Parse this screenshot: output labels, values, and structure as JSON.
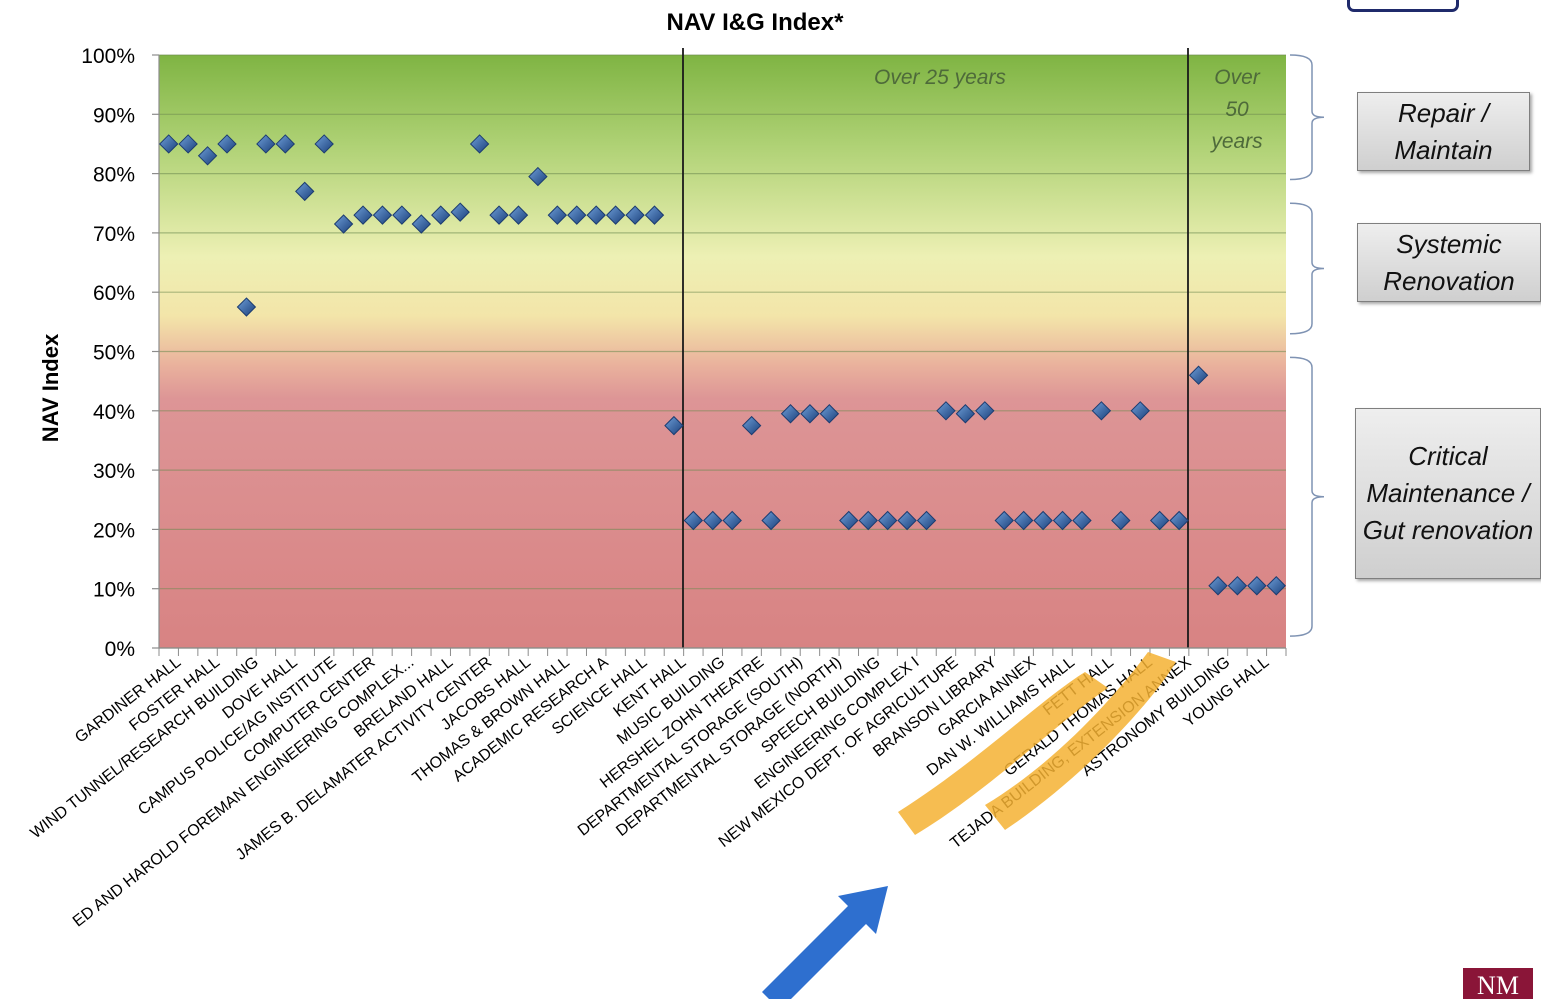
{
  "chart_data": {
    "type": "scatter",
    "title": "NAV I&G Index*",
    "xlabel": "",
    "ylabel": "NAV Index",
    "ylim": [
      0,
      100
    ],
    "yticks": [
      "0%",
      "10%",
      "20%",
      "30%",
      "40%",
      "50%",
      "60%",
      "70%",
      "80%",
      "90%",
      "100%"
    ],
    "grid": true,
    "marker_color": "#2d5c9e",
    "labeled_categories": [
      "GARDINER HALL",
      "FOSTER HALL",
      "WIND TUNNEL/RESEARCH BUILDING",
      "DOVE HALL",
      "CAMPUS POLICE/AG INSTITUTE",
      "COMPUTER CENTER",
      "ED AND HAROLD FOREMAN ENGINEERING COMPLEX...",
      "BRELAND HALL",
      "JAMES B. DELAMATER ACTIVITY CENTER",
      "JACOBS HALL",
      "THOMAS & BROWN HALL",
      "ACADEMIC RESEARCH A",
      "SCIENCE HALL",
      "KENT HALL",
      "MUSIC BUILDING",
      "HERSHEL ZOHN THEATRE",
      "DEPARTMENTAL STORAGE (SOUTH)",
      "DEPARTMENTAL STORAGE (NORTH)",
      "SPEECH BUILDING",
      "ENGINEERING COMPLEX I",
      "NEW MEXICO DEPT. OF AGRICULTURE",
      "BRANSON LIBRARY",
      "GARCIA ANNEX",
      "DAN W. WILLIAMS HALL",
      "FETT HALL",
      "GERALD THOMAS HALL",
      "TEJADA BUILDING, EXTENSION ANNEX",
      "ASTRONOMY BUILDING",
      "YOUNG HALL"
    ],
    "values": [
      85,
      85,
      83,
      85,
      57.5,
      85,
      85,
      77,
      85,
      71.5,
      73,
      73,
      73,
      71.5,
      73,
      73.5,
      85,
      73,
      73,
      79.5,
      73,
      73,
      73,
      73,
      73,
      73,
      37.5,
      21.5,
      21.5,
      21.5,
      37.5,
      21.5,
      39.5,
      39.5,
      39.5,
      21.5,
      21.5,
      21.5,
      21.5,
      21.5,
      40,
      39.5,
      40,
      21.5,
      21.5,
      21.5,
      21.5,
      21.5,
      40,
      21.5,
      40,
      21.5,
      21.5,
      46,
      10.5,
      10.5,
      10.5,
      10.5
    ],
    "region_annotations": [
      "Over 25 years",
      "Over 50 years"
    ],
    "bands": [
      {
        "label": "Repair / Maintain",
        "from": 79,
        "to": 100
      },
      {
        "label": "Systemic Renovation",
        "from": 53,
        "to": 75
      },
      {
        "label": "Critical Maintenance / Gut renovation",
        "from": 2,
        "to": 49
      }
    ]
  },
  "logo_text": "NM"
}
